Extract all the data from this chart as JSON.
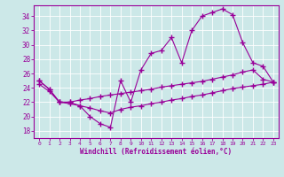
{
  "xlabel": "Windchill (Refroidissement éolien,°C)",
  "background_color": "#cce8e8",
  "line_color": "#990099",
  "xlim": [
    -0.5,
    23.5
  ],
  "ylim": [
    17.0,
    35.5
  ],
  "yticks": [
    18,
    20,
    22,
    24,
    26,
    28,
    30,
    32,
    34
  ],
  "xticks": [
    0,
    1,
    2,
    3,
    4,
    5,
    6,
    7,
    8,
    9,
    10,
    11,
    12,
    13,
    14,
    15,
    16,
    17,
    18,
    19,
    20,
    21,
    22,
    23
  ],
  "line1_x": [
    0,
    1,
    2,
    3,
    4,
    5,
    6,
    7,
    8,
    9,
    10,
    11,
    12,
    13,
    14,
    15,
    16,
    17,
    18,
    19,
    20,
    21,
    22,
    23
  ],
  "line1_y": [
    25.0,
    23.8,
    22.0,
    22.0,
    21.5,
    20.0,
    19.0,
    18.5,
    25.0,
    22.0,
    26.5,
    28.8,
    29.2,
    31.0,
    27.5,
    32.0,
    34.0,
    34.5,
    35.0,
    34.2,
    30.3,
    27.5,
    27.0,
    24.8
  ],
  "line2_x": [
    0,
    1,
    2,
    3,
    4,
    5,
    6,
    7,
    8,
    9,
    10,
    11,
    12,
    13,
    14,
    15,
    16,
    17,
    18,
    19,
    20,
    21,
    22,
    23
  ],
  "line2_y": [
    25.0,
    23.8,
    22.0,
    22.0,
    22.3,
    22.5,
    22.8,
    23.0,
    23.2,
    23.4,
    23.6,
    23.8,
    24.1,
    24.3,
    24.5,
    24.7,
    24.9,
    25.2,
    25.5,
    25.8,
    26.2,
    26.5,
    25.2,
    24.8
  ],
  "line3_x": [
    0,
    1,
    2,
    3,
    4,
    5,
    6,
    7,
    8,
    9,
    10,
    11,
    12,
    13,
    14,
    15,
    16,
    17,
    18,
    19,
    20,
    21,
    22,
    23
  ],
  "line3_y": [
    24.5,
    23.5,
    22.0,
    21.8,
    21.5,
    21.2,
    20.8,
    20.5,
    21.0,
    21.3,
    21.5,
    21.8,
    22.0,
    22.3,
    22.5,
    22.8,
    23.0,
    23.3,
    23.6,
    23.9,
    24.1,
    24.3,
    24.5,
    24.8
  ]
}
